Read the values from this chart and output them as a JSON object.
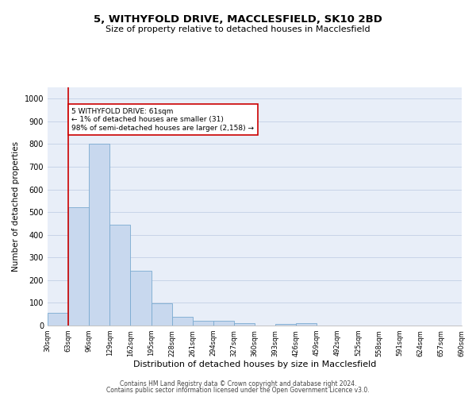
{
  "title": "5, WITHYFOLD DRIVE, MACCLESFIELD, SK10 2BD",
  "subtitle": "Size of property relative to detached houses in Macclesfield",
  "xlabel": "Distribution of detached houses by size in Macclesfield",
  "ylabel": "Number of detached properties",
  "bar_color": "#c8d8ee",
  "bar_edge_color": "#7aaad0",
  "bins": [
    30,
    63,
    96,
    129,
    162,
    195,
    228,
    261,
    294,
    327,
    360,
    393,
    426,
    459,
    492,
    525,
    558,
    591,
    624,
    657,
    690
  ],
  "values": [
    55,
    520,
    800,
    445,
    240,
    98,
    38,
    20,
    20,
    12,
    0,
    8,
    12,
    0,
    0,
    0,
    0,
    0,
    0,
    0
  ],
  "ylim": [
    0,
    1050
  ],
  "yticks": [
    0,
    100,
    200,
    300,
    400,
    500,
    600,
    700,
    800,
    900,
    1000
  ],
  "annotation_text": "5 WITHYFOLD DRIVE: 61sqm\n← 1% of detached houses are smaller (31)\n98% of semi-detached houses are larger (2,158) →",
  "vline_x": 63,
  "vline_color": "#cc0000",
  "annotation_box_facecolor": "#ffffff",
  "annotation_box_edgecolor": "#cc0000",
  "footer_line1": "Contains HM Land Registry data © Crown copyright and database right 2024.",
  "footer_line2": "Contains public sector information licensed under the Open Government Licence v3.0.",
  "grid_color": "#c8d4e8",
  "background_color": "#e8eef8",
  "title_fontsize": 9.5,
  "subtitle_fontsize": 8,
  "ylabel_fontsize": 7.5,
  "xlabel_fontsize": 8,
  "tick_fontsize": 6,
  "footer_fontsize": 5.5
}
